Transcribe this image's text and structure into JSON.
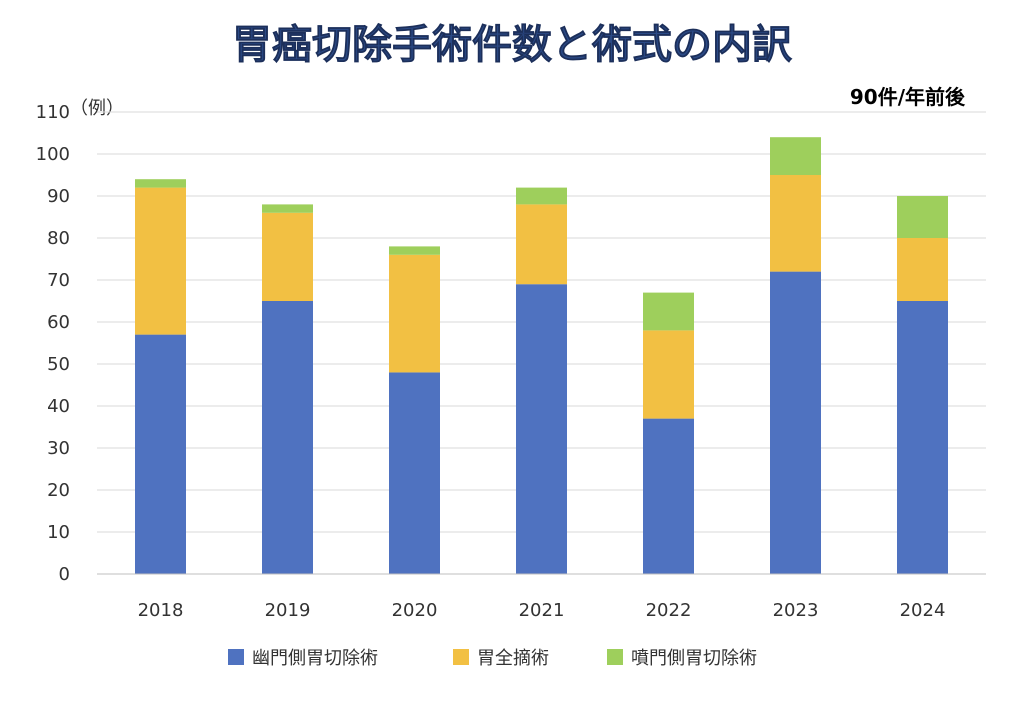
{
  "title": "胃癌切除手術件数と術式の内訳",
  "subtitle": "90件/年前後",
  "chart_data": {
    "type": "bar",
    "stacked": true,
    "categories": [
      "2018",
      "2019",
      "2020",
      "2021",
      "2022",
      "2023",
      "2024"
    ],
    "series": [
      {
        "name": "幽門側胃切除術",
        "color": "#4f72c0",
        "values": [
          57,
          65,
          48,
          69,
          37,
          72,
          65
        ]
      },
      {
        "name": "胃全摘術",
        "color": "#f2c043",
        "values": [
          35,
          21,
          28,
          19,
          21,
          23,
          15
        ]
      },
      {
        "name": "噴門側胃切除術",
        "color": "#9ecf5c",
        "values": [
          2,
          2,
          2,
          4,
          9,
          9,
          10
        ]
      }
    ],
    "ylabel": "（例）",
    "ylim": [
      0,
      110
    ],
    "yticks": [
      0,
      10,
      20,
      30,
      40,
      50,
      60,
      70,
      80,
      90,
      100,
      110
    ],
    "grid": true,
    "legend": "bottom"
  }
}
